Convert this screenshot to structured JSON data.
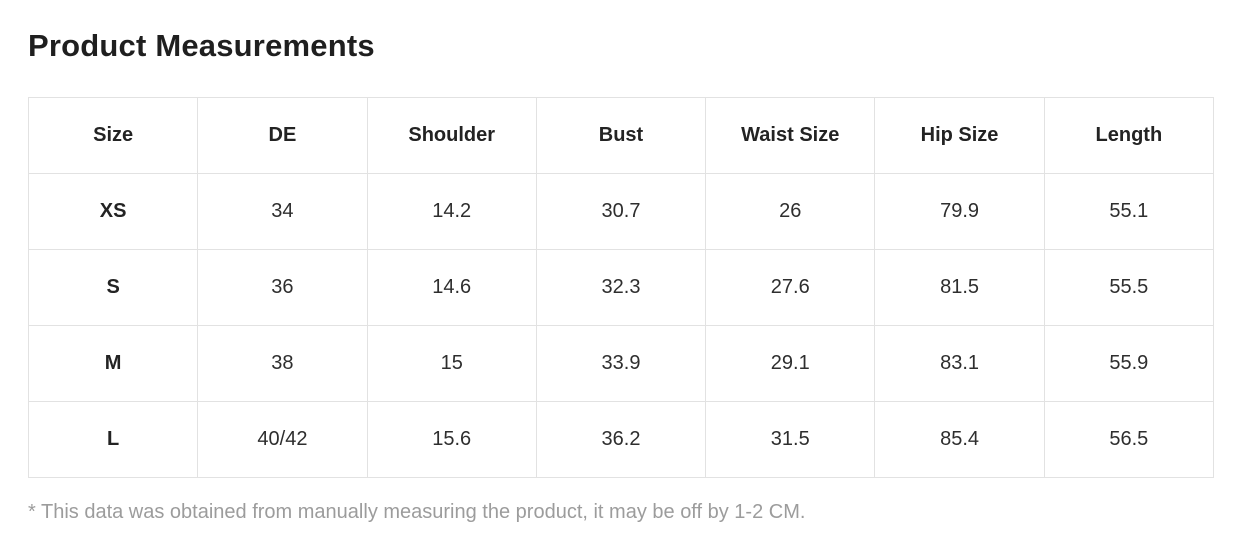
{
  "page": {
    "title": "Product Measurements",
    "footnote": "* This data was obtained from manually measuring the product, it may be off by 1-2 CM."
  },
  "colors": {
    "title_text": "#1f1f1f",
    "cell_text": "#2e2e2e",
    "border": "#e2e2e2",
    "footnote_text": "#9c9c9c",
    "background": "#ffffff"
  },
  "chart_data": {
    "type": "table",
    "title": "Product Measurements",
    "columns": [
      "Size",
      "DE",
      "Shoulder",
      "Bust",
      "Waist Size",
      "Hip Size",
      "Length"
    ],
    "rows": [
      [
        "XS",
        "34",
        "14.2",
        "30.7",
        "26",
        "79.9",
        "55.1"
      ],
      [
        "S",
        "36",
        "14.6",
        "32.3",
        "27.6",
        "81.5",
        "55.5"
      ],
      [
        "M",
        "38",
        "15",
        "33.9",
        "29.1",
        "83.1",
        "55.9"
      ],
      [
        "L",
        "40/42",
        "15.6",
        "36.2",
        "31.5",
        "85.4",
        "56.5"
      ]
    ],
    "layout": {
      "grid": true,
      "header_row_bold": true,
      "first_column_bold": true,
      "cell_alignment": "center"
    }
  }
}
